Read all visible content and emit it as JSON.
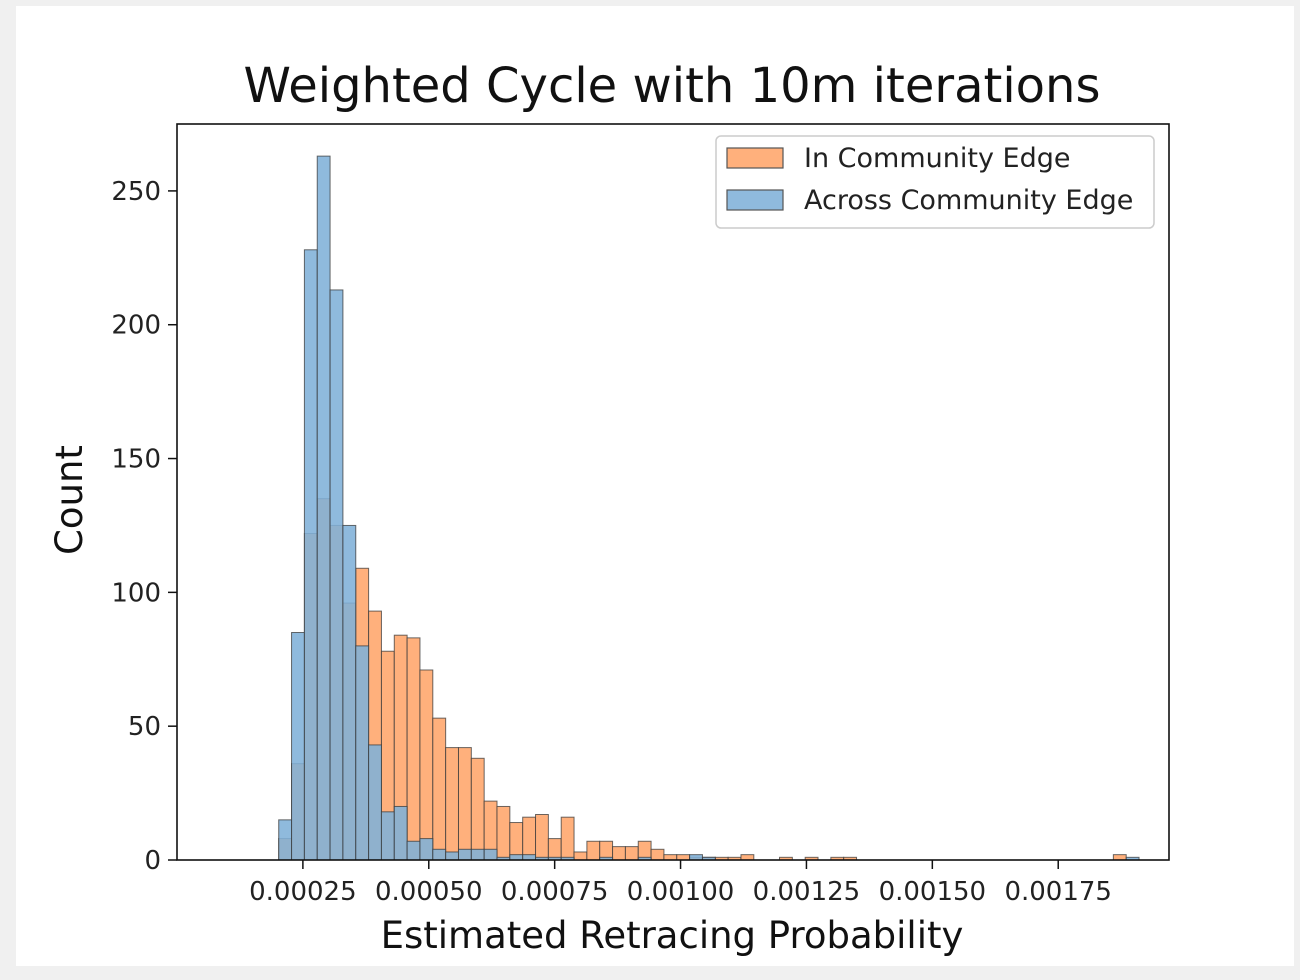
{
  "chart_data": {
    "type": "histogram",
    "title": "Weighted Cycle with 10m iterations",
    "xlabel": "Estimated Retracing Probability",
    "ylabel": "Count",
    "xlim": [
      0.0,
      0.00197
    ],
    "ylim": [
      0,
      275
    ],
    "x_ticks": [
      {
        "value": 0.00025,
        "label": "0.00025"
      },
      {
        "value": 0.0005,
        "label": "0.00050"
      },
      {
        "value": 0.00075,
        "label": "0.00075"
      },
      {
        "value": 0.001,
        "label": "0.00100"
      },
      {
        "value": 0.00125,
        "label": "0.00125"
      },
      {
        "value": 0.0015,
        "label": "0.00150"
      },
      {
        "value": 0.00175,
        "label": "0.00175"
      }
    ],
    "y_ticks": [
      {
        "value": 0,
        "label": "0"
      },
      {
        "value": 50,
        "label": "50"
      },
      {
        "value": 100,
        "label": "100"
      },
      {
        "value": 150,
        "label": "150"
      },
      {
        "value": 200,
        "label": "200"
      },
      {
        "value": 250,
        "label": "250"
      }
    ],
    "legend_position": "top-right",
    "grid": false,
    "bin_width": 2.55e-05,
    "series": [
      {
        "name": "In Community Edge",
        "color": "#ffb07c",
        "bins": [
          [
            0.000202,
            8
          ],
          [
            0.0002275,
            36
          ],
          [
            0.000253,
            122
          ],
          [
            0.0002785,
            135
          ],
          [
            0.000304,
            125
          ],
          [
            0.0003295,
            96
          ],
          [
            0.000355,
            109
          ],
          [
            0.0003805,
            93
          ],
          [
            0.000406,
            78
          ],
          [
            0.0004315,
            84
          ],
          [
            0.000457,
            83
          ],
          [
            0.0004825,
            71
          ],
          [
            0.000508,
            53
          ],
          [
            0.0005335,
            42
          ],
          [
            0.000559,
            42
          ],
          [
            0.0005845,
            38
          ],
          [
            0.00061,
            22
          ],
          [
            0.0006355,
            20
          ],
          [
            0.000661,
            14
          ],
          [
            0.0006865,
            16
          ],
          [
            0.000712,
            17
          ],
          [
            0.0007375,
            8
          ],
          [
            0.000763,
            16
          ],
          [
            0.0007885,
            3
          ],
          [
            0.000814,
            7
          ],
          [
            0.0008395,
            7
          ],
          [
            0.000865,
            5
          ],
          [
            0.0008905,
            5
          ],
          [
            0.000916,
            7
          ],
          [
            0.0009415,
            4
          ],
          [
            0.000967,
            2
          ],
          [
            0.0009925,
            2
          ],
          [
            0.001018,
            1
          ],
          [
            0.0010435,
            1
          ],
          [
            0.001069,
            1
          ],
          [
            0.0010945,
            1
          ],
          [
            0.00112,
            2
          ],
          [
            0.0011965,
            1
          ],
          [
            0.0012475,
            1
          ],
          [
            0.0012985,
            1
          ],
          [
            0.001324,
            1
          ],
          [
            0.0018595,
            2
          ]
        ]
      },
      {
        "name": "Across Community Edge",
        "color": "#7fb0d8",
        "bins": [
          [
            0.000202,
            15
          ],
          [
            0.0002275,
            85
          ],
          [
            0.000253,
            228
          ],
          [
            0.0002785,
            263
          ],
          [
            0.000304,
            213
          ],
          [
            0.0003295,
            125
          ],
          [
            0.000355,
            80
          ],
          [
            0.0003805,
            43
          ],
          [
            0.000406,
            18
          ],
          [
            0.0004315,
            20
          ],
          [
            0.000457,
            7
          ],
          [
            0.0004825,
            8
          ],
          [
            0.000508,
            4
          ],
          [
            0.0005335,
            3
          ],
          [
            0.000559,
            4
          ],
          [
            0.0005845,
            4
          ],
          [
            0.00061,
            4
          ],
          [
            0.0006355,
            1
          ],
          [
            0.000661,
            2
          ],
          [
            0.0006865,
            2
          ],
          [
            0.000712,
            1
          ],
          [
            0.0007375,
            1
          ],
          [
            0.000763,
            1
          ],
          [
            0.0008395,
            1
          ],
          [
            0.000916,
            1
          ],
          [
            0.001018,
            2
          ],
          [
            0.0010435,
            1
          ],
          [
            0.001885,
            1
          ]
        ]
      }
    ]
  }
}
